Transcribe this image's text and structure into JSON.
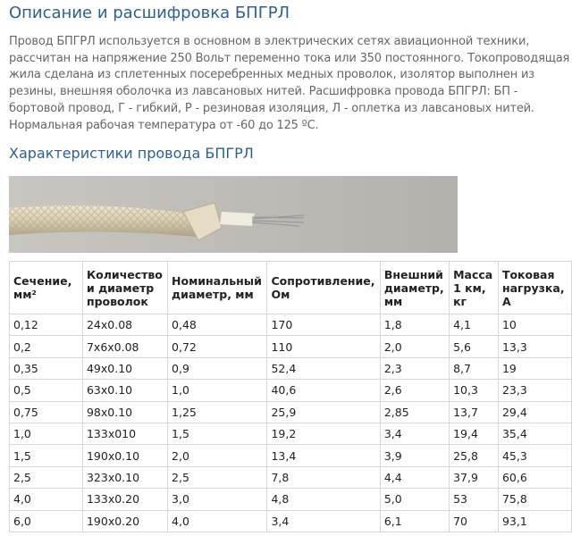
{
  "header": {
    "title": "Описание и расшифровка БПГРЛ"
  },
  "description": {
    "lines": [
      "Провод БПГРЛ используется в основном в электрических сетях авиационной техники,",
      "рассчитан на напряжение 250 Вольт переменно тока или 350 постоянного. Токопроводящая",
      "жила сделана из сплетенных посеребренных медных проволок, изолятор выполнен из",
      "резины, внешняя оболочка из лавсановых нитей. Расшифровка провода БПГРЛ: БП -",
      "бортовой провод, Г - гибкий, Р - резиновая изоляция, Л - оплетка из лавсановых нитей.",
      "Нормальная рабочая температура от -60 до 125 ºС."
    ]
  },
  "section": {
    "title": "Характеристики провода БПГРЛ"
  },
  "table": {
    "header": [
      "Сечение, мм²",
      "Количество и диаметр проволок",
      "Номинальный диаметр, мм",
      "Сопротивление, Ом",
      "Внешний диаметр, мм",
      "Масса 1 км, кг",
      "Токовая нагрузка, А"
    ],
    "rows": [
      [
        "0,12",
        "24x0.08",
        "0,48",
        "170",
        "1,8",
        "4,1",
        "10"
      ],
      [
        "0,2",
        "7x6x0.08",
        "0,72",
        "110",
        "2,0",
        "5,6",
        "13,3"
      ],
      [
        "0,35",
        "49x0.10",
        "0,9",
        "52,4",
        "2,3",
        "8,7",
        "19"
      ],
      [
        "0,5",
        "63x0.10",
        "1,0",
        "40,6",
        "2,6",
        "10,3",
        "23,3"
      ],
      [
        "0,75",
        "98x0.10",
        "1,25",
        "25,9",
        "2,85",
        "13,7",
        "29,4"
      ],
      [
        "1,0",
        "133x010",
        "1,5",
        "19,2",
        "3,4",
        "19,4",
        "35,4"
      ],
      [
        "1,5",
        "190x0.10",
        "2,0",
        "13,4",
        "3,9",
        "25,8",
        "45,3"
      ],
      [
        "2,5",
        "323x0.10",
        "2,5",
        "7,8",
        "4,4",
        "37,9",
        "60,6"
      ],
      [
        "4,0",
        "133x0.20",
        "3,0",
        "4,8",
        "5,0",
        "53",
        "75,8"
      ],
      [
        "6,0",
        "190x0.20",
        "4,0",
        "3,4",
        "6,1",
        "70",
        "93,1"
      ]
    ]
  }
}
